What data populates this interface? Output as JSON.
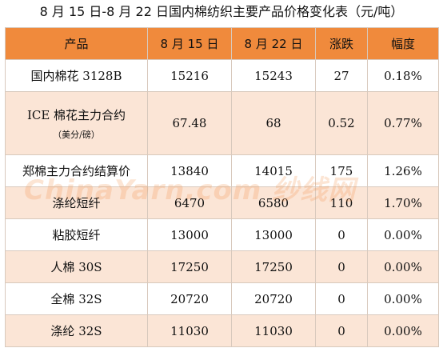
{
  "title": "8 月 15 日-8 月 22 日国内棉纺织主要产品价格变化表（元/吨）",
  "headers": [
    "产品",
    "8 月 15 日",
    "8 月 22 日",
    "涨跌",
    "幅度"
  ],
  "rows": [
    {
      "product": "国内棉花 3128B",
      "sub": "",
      "a": "15216",
      "b": "15243",
      "chg": "27",
      "pct": "0.18%"
    },
    {
      "product": "ICE 棉花主力合约",
      "sub": "（美分/磅）",
      "a": "67.48",
      "b": "68",
      "chg": "0.52",
      "pct": "0.77%"
    },
    {
      "product": "郑棉主力合约结算价",
      "sub": "",
      "a": "13840",
      "b": "14015",
      "chg": "175",
      "pct": "1.26%"
    },
    {
      "product": "涤纶短纤",
      "sub": "",
      "a": "6470",
      "b": "6580",
      "chg": "110",
      "pct": "1.70%"
    },
    {
      "product": "粘胶短纤",
      "sub": "",
      "a": "13000",
      "b": "13000",
      "chg": "0",
      "pct": "0.00%"
    },
    {
      "product": "人棉 30S",
      "sub": "",
      "a": "17250",
      "b": "17250",
      "chg": "0",
      "pct": "0.00%"
    },
    {
      "product": "全棉 32S",
      "sub": "",
      "a": "20720",
      "b": "20720",
      "chg": "0",
      "pct": "0.00%"
    },
    {
      "product": "涤纶 32S",
      "sub": "",
      "a": "11030",
      "b": "11030",
      "chg": "0",
      "pct": "0.00%"
    }
  ],
  "watermark": "ChinaYarn.com 纱线网",
  "colors": {
    "header": "#f08a3c",
    "alt_row": "#fbe5d6"
  }
}
